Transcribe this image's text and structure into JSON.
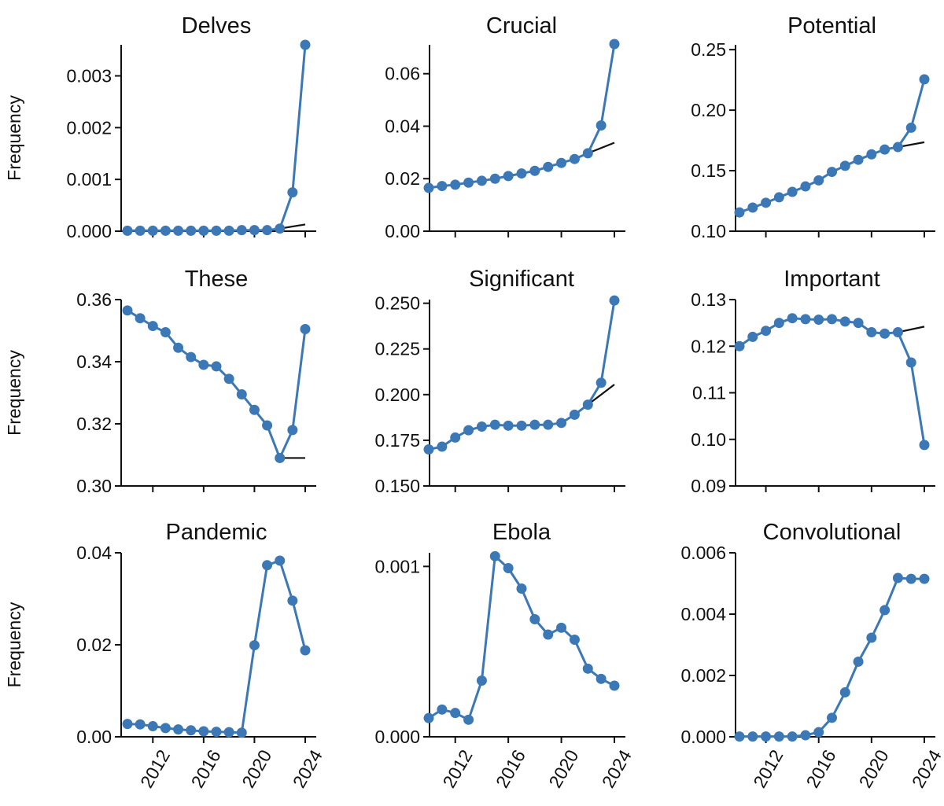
{
  "colors": {
    "series": "#3b78b5",
    "trend": "#111111",
    "axis": "#111111",
    "background": "#ffffff"
  },
  "chart_data": [
    {
      "type": "line",
      "title": "Delves",
      "ylabel": "Frequency",
      "xlim": [
        2010,
        2024
      ],
      "ylim": [
        0,
        0.0036
      ],
      "yticks": [
        0,
        0.001,
        0.002,
        0.003
      ],
      "ytick_labels": [
        "0.000",
        "0.001",
        "0.002",
        "0.003"
      ],
      "xticks": [
        2012,
        2016,
        2020,
        2024
      ],
      "xtick_labels": [],
      "x": [
        2010,
        2011,
        2012,
        2013,
        2014,
        2015,
        2016,
        2017,
        2018,
        2019,
        2020,
        2021,
        2022,
        2023,
        2024
      ],
      "y": [
        1e-05,
        1e-05,
        1e-05,
        1e-05,
        1e-05,
        1e-05,
        1e-05,
        1e-05,
        1e-05,
        2e-05,
        2e-05,
        2e-05,
        5e-05,
        0.00075,
        0.0036
      ],
      "trend": {
        "x": [
          2022,
          2024
        ],
        "y": [
          5e-05,
          0.00013
        ]
      }
    },
    {
      "type": "line",
      "title": "Crucial",
      "ylabel": "",
      "xlim": [
        2010,
        2024
      ],
      "ylim": [
        0,
        0.071
      ],
      "yticks": [
        0,
        0.02,
        0.04,
        0.06
      ],
      "ytick_labels": [
        "0.00",
        "0.02",
        "0.04",
        "0.06"
      ],
      "xticks": [
        2012,
        2016,
        2020,
        2024
      ],
      "xtick_labels": [],
      "x": [
        2010,
        2011,
        2012,
        2013,
        2014,
        2015,
        2016,
        2017,
        2018,
        2019,
        2020,
        2021,
        2022,
        2023,
        2024
      ],
      "y": [
        0.0165,
        0.0172,
        0.0177,
        0.0185,
        0.0192,
        0.02,
        0.021,
        0.022,
        0.023,
        0.0245,
        0.026,
        0.0275,
        0.0297,
        0.0403,
        0.0713
      ],
      "trend": {
        "x": [
          2022,
          2024
        ],
        "y": [
          0.0297,
          0.0337
        ]
      }
    },
    {
      "type": "line",
      "title": "Potential",
      "ylabel": "",
      "xlim": [
        2010,
        2024
      ],
      "ylim": [
        0.1,
        0.254
      ],
      "yticks": [
        0.1,
        0.15,
        0.2,
        0.25
      ],
      "ytick_labels": [
        "0.10",
        "0.15",
        "0.20",
        "0.25"
      ],
      "xticks": [
        2012,
        2016,
        2020,
        2024
      ],
      "xtick_labels": [],
      "x": [
        2010,
        2011,
        2012,
        2013,
        2014,
        2015,
        2016,
        2017,
        2018,
        2019,
        2020,
        2021,
        2022,
        2023,
        2024
      ],
      "y": [
        0.1155,
        0.1195,
        0.1235,
        0.128,
        0.1325,
        0.137,
        0.142,
        0.149,
        0.154,
        0.159,
        0.1635,
        0.1675,
        0.1695,
        0.1855,
        0.2255
      ],
      "trend": {
        "x": [
          2022,
          2024
        ],
        "y": [
          0.1695,
          0.1735
        ]
      }
    },
    {
      "type": "line",
      "title": "These",
      "ylabel": "Frequency",
      "xlim": [
        2010,
        2024
      ],
      "ylim": [
        0.3,
        0.36
      ],
      "yticks": [
        0.3,
        0.32,
        0.34,
        0.36
      ],
      "ytick_labels": [
        "0.30",
        "0.32",
        "0.34",
        "0.36"
      ],
      "xticks": [
        2012,
        2016,
        2020,
        2024
      ],
      "xtick_labels": [],
      "x": [
        2010,
        2011,
        2012,
        2013,
        2014,
        2015,
        2016,
        2017,
        2018,
        2019,
        2020,
        2021,
        2022,
        2023,
        2024
      ],
      "y": [
        0.3565,
        0.354,
        0.3515,
        0.3495,
        0.3445,
        0.3415,
        0.339,
        0.3385,
        0.3345,
        0.3295,
        0.3245,
        0.3195,
        0.309,
        0.318,
        0.3505
      ],
      "trend": {
        "x": [
          2022,
          2024
        ],
        "y": [
          0.309,
          0.309
        ]
      }
    },
    {
      "type": "line",
      "title": "Significant",
      "ylabel": "",
      "xlim": [
        2010,
        2024
      ],
      "ylim": [
        0.15,
        0.252
      ],
      "yticks": [
        0.15,
        0.175,
        0.2,
        0.225,
        0.25
      ],
      "ytick_labels": [
        "0.150",
        "0.175",
        "0.200",
        "0.225",
        "0.250"
      ],
      "xticks": [
        2012,
        2016,
        2020,
        2024
      ],
      "xtick_labels": [],
      "x": [
        2010,
        2011,
        2012,
        2013,
        2014,
        2015,
        2016,
        2017,
        2018,
        2019,
        2020,
        2021,
        2022,
        2023,
        2024
      ],
      "y": [
        0.17,
        0.1715,
        0.1765,
        0.1805,
        0.1825,
        0.1835,
        0.183,
        0.183,
        0.1835,
        0.1835,
        0.1845,
        0.189,
        0.1945,
        0.2065,
        0.2515
      ],
      "trend": {
        "x": [
          2022,
          2024
        ],
        "y": [
          0.1945,
          0.2055
        ]
      }
    },
    {
      "type": "line",
      "title": "Important",
      "ylabel": "",
      "xlim": [
        2010,
        2024
      ],
      "ylim": [
        0.09,
        0.13
      ],
      "yticks": [
        0.09,
        0.1,
        0.11,
        0.12,
        0.13
      ],
      "ytick_labels": [
        "0.09",
        "0.10",
        "0.11",
        "0.12",
        "0.13"
      ],
      "xticks": [
        2012,
        2016,
        2020,
        2024
      ],
      "xtick_labels": [],
      "x": [
        2010,
        2011,
        2012,
        2013,
        2014,
        2015,
        2016,
        2017,
        2018,
        2019,
        2020,
        2021,
        2022,
        2023,
        2024
      ],
      "y": [
        0.12,
        0.122,
        0.1233,
        0.125,
        0.126,
        0.1258,
        0.1257,
        0.1258,
        0.1253,
        0.125,
        0.123,
        0.1227,
        0.123,
        0.1165,
        0.0988
      ],
      "trend": {
        "x": [
          2022,
          2024
        ],
        "y": [
          0.123,
          0.1242
        ]
      }
    },
    {
      "type": "line",
      "title": "Pandemic",
      "ylabel": "Frequency",
      "xlim": [
        2010,
        2024
      ],
      "ylim": [
        0,
        0.04
      ],
      "yticks": [
        0,
        0.02,
        0.04
      ],
      "ytick_labels": [
        "0.00",
        "0.02",
        "0.04"
      ],
      "xticks": [
        2012,
        2016,
        2020,
        2024
      ],
      "xtick_labels": [
        "2012",
        "2016",
        "2020",
        "2024"
      ],
      "x": [
        2010,
        2011,
        2012,
        2013,
        2014,
        2015,
        2016,
        2017,
        2018,
        2019,
        2020,
        2021,
        2022,
        2023,
        2024
      ],
      "y": [
        0.0028,
        0.0027,
        0.0023,
        0.0019,
        0.0016,
        0.0014,
        0.0012,
        0.0011,
        0.001,
        0.0009,
        0.0199,
        0.0373,
        0.0383,
        0.0296,
        0.0188
      ],
      "trend": null
    },
    {
      "type": "line",
      "title": "Ebola",
      "ylabel": "",
      "xlim": [
        2010,
        2024
      ],
      "ylim": [
        0,
        0.00108
      ],
      "yticks": [
        0,
        0.001
      ],
      "ytick_labels": [
        "0.000",
        "0.001"
      ],
      "xticks": [
        2012,
        2016,
        2020,
        2024
      ],
      "xtick_labels": [
        "2012",
        "2016",
        "2020",
        "2024"
      ],
      "x": [
        2010,
        2011,
        2012,
        2013,
        2014,
        2015,
        2016,
        2017,
        2018,
        2019,
        2020,
        2021,
        2022,
        2023,
        2024
      ],
      "y": [
        0.00011,
        0.00016,
        0.00014,
        0.0001,
        0.00033,
        0.00106,
        0.00099,
        0.00087,
        0.00069,
        0.0006,
        0.00064,
        0.00057,
        0.0004,
        0.00034,
        0.0003
      ],
      "trend": null
    },
    {
      "type": "line",
      "title": "Convolutional",
      "ylabel": "",
      "xlim": [
        2010,
        2024
      ],
      "ylim": [
        0,
        0.006
      ],
      "yticks": [
        0,
        0.002,
        0.004,
        0.006
      ],
      "ytick_labels": [
        "0.000",
        "0.002",
        "0.004",
        "0.006"
      ],
      "xticks": [
        2012,
        2016,
        2020,
        2024
      ],
      "xtick_labels": [
        "2012",
        "2016",
        "2020",
        "2024"
      ],
      "x": [
        2010,
        2011,
        2012,
        2013,
        2014,
        2015,
        2016,
        2017,
        2018,
        2019,
        2020,
        2021,
        2022,
        2023,
        2024
      ],
      "y": [
        1e-05,
        1e-05,
        1e-05,
        1e-05,
        1e-05,
        5e-05,
        0.00015,
        0.00062,
        0.00145,
        0.00245,
        0.00323,
        0.00413,
        0.00518,
        0.00515,
        0.00515
      ],
      "trend": null
    }
  ]
}
